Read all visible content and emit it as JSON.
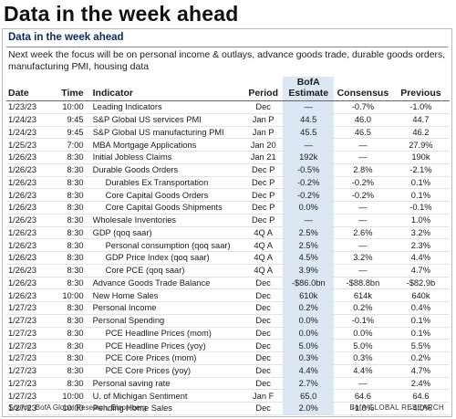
{
  "header": {
    "title": "Data in the week ahead"
  },
  "panel": {
    "title": "Data in the week ahead",
    "subtitle": "Next week the focus will be on personal income & outlays, advance goods trade, durable goods orders, manufacturing PMI, housing data"
  },
  "table": {
    "columns": [
      "Date",
      "Time",
      "Indicator",
      "Period",
      "BofA Estimate",
      "Consensus",
      "Previous"
    ],
    "rows": [
      [
        "1/23/23",
        "10:00",
        "Leading Indicators",
        "Dec",
        "—",
        "-0.7%",
        "-1.0%"
      ],
      [
        "1/24/23",
        "9:45",
        "S&P Global US services PMI",
        "Jan P",
        "44.5",
        "46.0",
        "44.7"
      ],
      [
        "1/24/23",
        "9:45",
        "S&P Global US manufacturing PMI",
        "Jan P",
        "45.5",
        "46.5",
        "46.2"
      ],
      [
        "1/25/23",
        "7:00",
        "MBA Mortgage Applications",
        "Jan 20",
        "—",
        "—",
        "27.9%"
      ],
      [
        "1/26/23",
        "8:30",
        "Initial Jobless Claims",
        "Jan 21",
        "192k",
        "—",
        "190k"
      ],
      [
        "1/26/23",
        "8:30",
        "Durable Goods Orders",
        "Dec P",
        "-0.5%",
        "2.8%",
        "-2.1%"
      ],
      [
        "1/26/23",
        "8:30",
        "Durables Ex Transportation",
        "Dec P",
        "-0.2%",
        "-0.2%",
        "0.1%"
      ],
      [
        "1/26/23",
        "8:30",
        "Core Capital Goods Orders",
        "Dec P",
        "-0.2%",
        "-0.2%",
        "0.1%"
      ],
      [
        "1/26/23",
        "8:30",
        "Core Capital Goods Shipments",
        "Dec P",
        "0.0%",
        "—",
        "-0.1%"
      ],
      [
        "1/26/23",
        "8:30",
        "Wholesale Inventories",
        "Dec P",
        "—",
        "—",
        "1.0%"
      ],
      [
        "1/26/23",
        "8:30",
        "GDP (qoq saar)",
        "4Q A",
        "2.5%",
        "2.6%",
        "3.2%"
      ],
      [
        "1/26/23",
        "8:30",
        "Personal consumption (qoq saar)",
        "4Q A",
        "2.5%",
        "—",
        "2.3%"
      ],
      [
        "1/26/23",
        "8:30",
        "GDP Price Index (qoq saar)",
        "4Q A",
        "4.5%",
        "3.2%",
        "4.4%"
      ],
      [
        "1/26/23",
        "8:30",
        "Core PCE (qoq saar)",
        "4Q A",
        "3.9%",
        "—",
        "4.7%"
      ],
      [
        "1/26/23",
        "8:30",
        "Advance Goods Trade Balance",
        "Dec",
        "-$86.0bn",
        "-$88.8bn",
        "-$82.9b"
      ],
      [
        "1/26/23",
        "10:00",
        "New Home Sales",
        "Dec",
        "610k",
        "614k",
        "640k"
      ],
      [
        "1/27/23",
        "8:30",
        "Personal Income",
        "Dec",
        "0.2%",
        "0.2%",
        "0.4%"
      ],
      [
        "1/27/23",
        "8:30",
        "Personal Spending",
        "Dec",
        "0.0%",
        "-0.1%",
        "0.1%"
      ],
      [
        "1/27/23",
        "8:30",
        "PCE Headline Prices (mom)",
        "Dec",
        "0.0%",
        "0.0%",
        "0.1%"
      ],
      [
        "1/27/23",
        "8:30",
        "PCE Headline Prices (yoy)",
        "Dec",
        "5.0%",
        "5.0%",
        "5.5%"
      ],
      [
        "1/27/23",
        "8:30",
        "PCE Core Prices (mom)",
        "Dec",
        "0.3%",
        "0.3%",
        "0.2%"
      ],
      [
        "1/27/23",
        "8:30",
        "PCE Core Prices (yoy)",
        "Dec",
        "4.4%",
        "4.4%",
        "4.7%"
      ],
      [
        "1/27/23",
        "8:30",
        "Personal saving rate",
        "Dec",
        "2.7%",
        "—",
        "2.4%"
      ],
      [
        "1/27/23",
        "10:00",
        "U. of Michigan Sentiment",
        "Jan F",
        "65.0",
        "64.6",
        "64.6"
      ],
      [
        "1/27/23",
        "10:00",
        "Pending Home Sales",
        "Dec",
        "2.0%",
        "-1.0%",
        "-4.0%"
      ]
    ]
  },
  "footer": {
    "source": "Source: BofA Global Research, Bloomberg",
    "brand": "BofA GLOBAL RESEARCH"
  }
}
